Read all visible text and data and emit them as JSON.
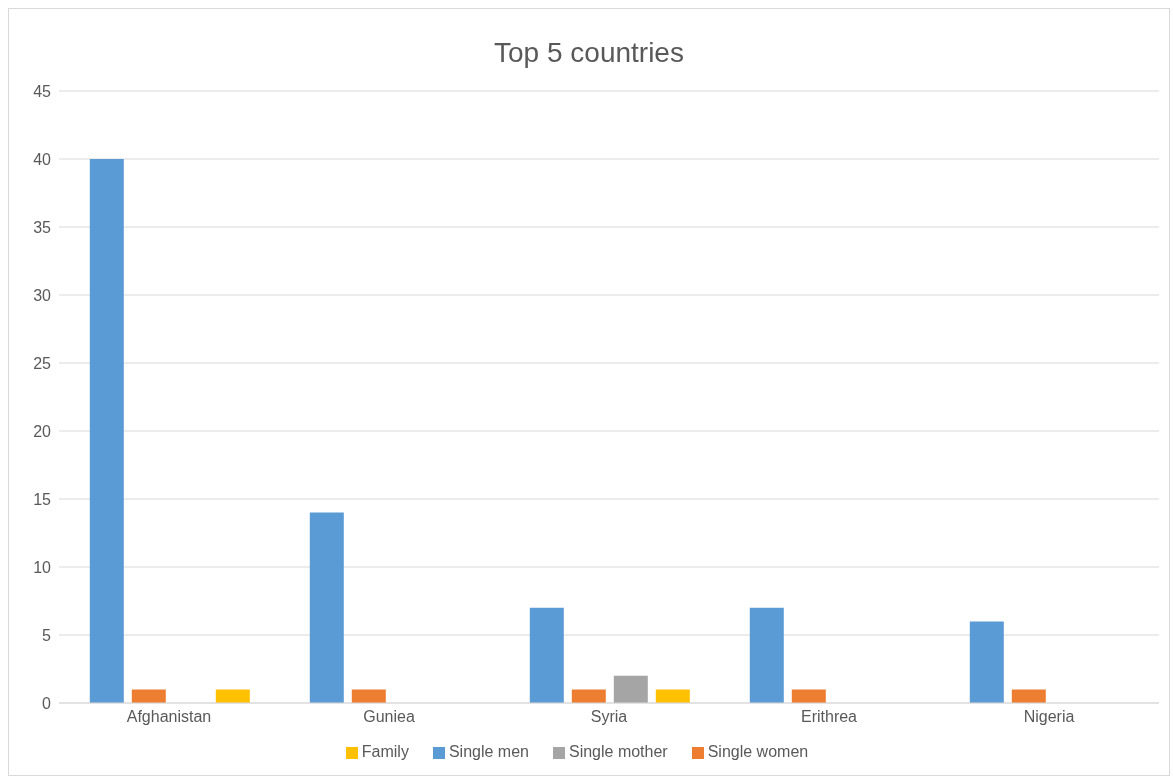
{
  "chart_data": {
    "type": "bar",
    "title": "Top 5 countries",
    "categories": [
      "Afghanistan",
      "Guniea",
      "Syria",
      "Erithrea",
      "Nigeria"
    ],
    "series": [
      {
        "name": "Single men",
        "color": "#5b9bd5",
        "values": [
          40,
          14,
          7,
          7,
          6
        ]
      },
      {
        "name": "Single women",
        "color": "#ed7d31",
        "values": [
          1,
          1,
          1,
          1,
          1
        ]
      },
      {
        "name": "Single mother",
        "color": "#a5a5a5",
        "values": [
          0,
          0,
          2,
          0,
          0
        ]
      },
      {
        "name": "Family",
        "color": "#ffc000",
        "values": [
          1,
          0,
          1,
          0,
          0
        ]
      }
    ],
    "ylim": [
      0,
      45
    ],
    "yticks": [
      0,
      5,
      10,
      15,
      20,
      25,
      30,
      35,
      40,
      45
    ],
    "grid": "y",
    "legend": "bottom"
  }
}
